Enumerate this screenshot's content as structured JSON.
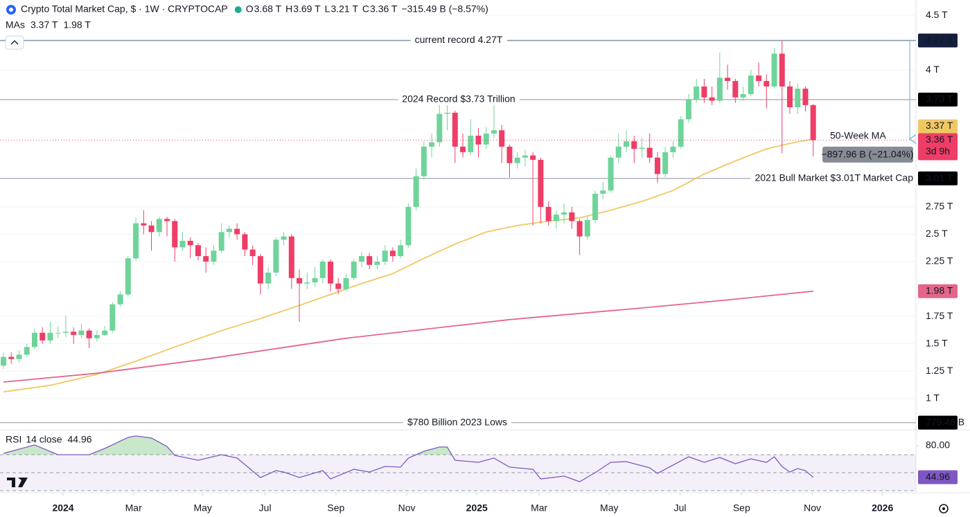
{
  "chart_data": {
    "type": "candlestick",
    "title": "Crypto Total Market Cap, $ · 1W · CRYPTOCAP",
    "ohlc_legend": [
      {
        "key": "O",
        "text": "3.68 T"
      },
      {
        "key": "H",
        "text": "3.69 T"
      },
      {
        "key": "L",
        "text": "3.21 T"
      },
      {
        "key": "C",
        "text": "3.36 T"
      }
    ],
    "change": "−315.49 B (−8.57%)",
    "ma_legend_title": "MAs",
    "up_color": "#6fd49a",
    "down_color": "#ee3d66",
    "open": [
      1.3,
      1.38,
      1.36,
      1.4,
      1.47,
      1.6,
      1.53,
      1.6,
      1.6,
      1.61,
      1.58,
      1.62,
      1.55,
      1.58,
      1.62,
      1.86,
      1.95,
      2.28,
      2.6,
      2.58,
      2.52,
      2.64,
      2.62,
      2.38,
      2.44,
      2.4,
      2.3,
      2.25,
      2.35,
      2.52,
      2.55,
      2.5,
      2.36,
      2.3,
      2.05,
      2.15,
      2.45,
      2.48,
      2.1,
      2.05,
      2.06,
      2.1,
      2.25,
      2.05,
      2.0,
      2.1,
      2.25,
      2.3,
      2.22,
      2.25,
      2.35,
      2.3,
      2.4,
      2.75,
      3.03,
      3.3,
      3.34,
      3.6,
      3.61,
      3.3,
      3.25,
      3.4,
      3.32,
      3.42,
      3.45,
      3.3,
      3.15,
      3.2,
      3.22,
      3.18,
      2.75,
      2.62,
      2.68,
      2.7,
      2.62,
      2.48,
      2.63,
      2.87,
      2.9,
      3.2,
      3.3,
      3.35,
      3.28,
      3.29,
      3.2,
      3.05,
      3.25,
      3.3,
      3.55,
      3.73,
      3.85,
      3.75,
      3.72,
      3.93,
      3.9,
      3.75,
      3.78,
      3.95,
      3.9,
      3.85,
      4.15,
      3.85,
      3.66,
      3.83,
      3.68
    ],
    "high": [
      1.42,
      1.42,
      1.44,
      1.5,
      1.64,
      1.65,
      1.7,
      1.66,
      1.76,
      1.65,
      1.68,
      1.64,
      1.62,
      1.66,
      1.88,
      1.98,
      2.3,
      2.65,
      2.72,
      2.62,
      2.66,
      2.66,
      2.64,
      2.52,
      2.47,
      2.42,
      2.38,
      2.4,
      2.6,
      2.58,
      2.6,
      2.52,
      2.4,
      2.32,
      2.2,
      2.47,
      2.52,
      2.5,
      2.18,
      2.15,
      2.2,
      2.27,
      2.27,
      2.1,
      2.14,
      2.27,
      2.34,
      2.33,
      2.3,
      2.4,
      2.38,
      2.45,
      2.78,
      3.1,
      3.35,
      3.42,
      3.7,
      3.68,
      3.63,
      3.42,
      3.55,
      3.47,
      3.48,
      3.76,
      3.5,
      3.32,
      3.25,
      3.27,
      3.25,
      3.2,
      2.8,
      2.72,
      2.78,
      2.75,
      2.64,
      2.66,
      2.9,
      2.98,
      3.22,
      3.42,
      3.45,
      3.4,
      3.38,
      3.42,
      3.25,
      3.3,
      3.35,
      3.58,
      3.78,
      3.92,
      3.92,
      3.85,
      4.16,
      4.05,
      3.92,
      3.85,
      4.0,
      4.07,
      3.96,
      4.2,
      4.27,
      3.9,
      3.88,
      3.85,
      3.69
    ],
    "low": [
      1.27,
      1.32,
      1.33,
      1.38,
      1.45,
      1.5,
      1.5,
      1.55,
      1.56,
      1.5,
      1.55,
      1.46,
      1.52,
      1.57,
      1.6,
      1.84,
      1.93,
      2.26,
      2.5,
      2.35,
      2.48,
      2.48,
      2.25,
      2.35,
      2.28,
      2.26,
      2.15,
      2.22,
      2.33,
      2.47,
      2.45,
      2.3,
      2.22,
      1.95,
      2.0,
      2.12,
      2.4,
      2.0,
      1.7,
      2.0,
      2.02,
      2.05,
      1.98,
      1.95,
      1.98,
      2.08,
      2.2,
      2.18,
      2.18,
      2.22,
      2.25,
      2.28,
      2.38,
      2.72,
      3.0,
      3.2,
      3.3,
      3.45,
      3.15,
      3.2,
      3.22,
      3.2,
      3.28,
      3.38,
      3.15,
      3.02,
      3.1,
      3.12,
      2.58,
      2.6,
      2.58,
      2.55,
      2.6,
      2.55,
      2.31,
      2.45,
      2.6,
      2.82,
      2.88,
      3.15,
      3.25,
      3.15,
      3.2,
      3.15,
      2.97,
      3.02,
      3.2,
      3.28,
      3.52,
      3.7,
      3.7,
      3.68,
      3.7,
      3.82,
      3.7,
      3.72,
      3.76,
      3.85,
      3.65,
      3.83,
      3.24,
      3.6,
      3.6,
      3.62,
      3.21
    ],
    "close": [
      1.38,
      1.36,
      1.4,
      1.47,
      1.6,
      1.53,
      1.6,
      1.6,
      1.61,
      1.58,
      1.62,
      1.55,
      1.58,
      1.62,
      1.86,
      1.95,
      2.28,
      2.6,
      2.58,
      2.52,
      2.64,
      2.62,
      2.38,
      2.44,
      2.4,
      2.3,
      2.25,
      2.35,
      2.52,
      2.55,
      2.5,
      2.36,
      2.3,
      2.05,
      2.15,
      2.45,
      2.48,
      2.1,
      2.05,
      2.06,
      2.1,
      2.25,
      2.05,
      2.0,
      2.1,
      2.25,
      2.3,
      2.22,
      2.25,
      2.35,
      2.3,
      2.4,
      2.75,
      3.03,
      3.3,
      3.34,
      3.6,
      3.61,
      3.3,
      3.25,
      3.4,
      3.32,
      3.42,
      3.45,
      3.3,
      3.15,
      3.2,
      3.22,
      3.18,
      2.75,
      2.62,
      2.68,
      2.7,
      2.62,
      2.48,
      2.63,
      2.87,
      2.9,
      3.2,
      3.3,
      3.35,
      3.28,
      3.29,
      3.2,
      3.05,
      3.25,
      3.3,
      3.55,
      3.73,
      3.85,
      3.75,
      3.72,
      3.93,
      3.9,
      3.75,
      3.78,
      3.95,
      3.9,
      3.85,
      4.15,
      3.85,
      3.66,
      3.83,
      3.68,
      3.36
    ],
    "last_price_label": "3.36 T",
    "countdown": "3d 9h",
    "ylim": [
      0.72,
      4.64
    ],
    "yticks": [
      {
        "value": 1,
        "label": "1 T"
      },
      {
        "value": 1.25,
        "label": "1.25 T"
      },
      {
        "value": 1.5,
        "label": "1.5 T"
      },
      {
        "value": 1.75,
        "label": "1.75 T"
      },
      {
        "value": 2.25,
        "label": "2.25 T"
      },
      {
        "value": 2.5,
        "label": "2.5 T"
      },
      {
        "value": 2.75,
        "label": "2.75 T"
      },
      {
        "value": 4,
        "label": "4 T"
      },
      {
        "value": 4.5,
        "label": "4.5 T"
      }
    ],
    "xlim": [
      -0.45,
      117.2
    ],
    "xticks": [
      {
        "value": 7.65,
        "label": "2024"
      },
      {
        "value": 16.7,
        "label": "Mar"
      },
      {
        "value": 25.6,
        "label": "May"
      },
      {
        "value": 33.6,
        "label": "Jul"
      },
      {
        "value": 42.7,
        "label": "Sep"
      },
      {
        "value": 51.8,
        "label": "Nov"
      },
      {
        "value": 60.8,
        "label": "2025"
      },
      {
        "value": 68.8,
        "label": "Mar"
      },
      {
        "value": 77.8,
        "label": "May"
      },
      {
        "value": 86.9,
        "label": "Jul"
      },
      {
        "value": 94.8,
        "label": "Sep"
      },
      {
        "value": 103.9,
        "label": "Nov"
      },
      {
        "value": 112.9,
        "label": "2026"
      }
    ],
    "grid": true,
    "series": [
      {
        "name": "50-Week MA",
        "color": "#f0c862",
        "last_label": "3.37 T",
        "x": [
          0,
          6,
          12,
          17,
          22,
          28,
          33,
          38,
          42,
          46,
          50,
          54,
          58,
          62,
          66,
          70,
          74,
          78,
          82,
          86,
          90,
          94,
          98,
          101,
          104
        ],
        "values": [
          1.06,
          1.12,
          1.22,
          1.34,
          1.47,
          1.62,
          1.73,
          1.85,
          1.95,
          2.05,
          2.14,
          2.28,
          2.41,
          2.52,
          2.58,
          2.62,
          2.65,
          2.72,
          2.8,
          2.9,
          3.05,
          3.17,
          3.28,
          3.33,
          3.37
        ]
      },
      {
        "color": "#e3668a",
        "last_label": "1.98 T",
        "x": [
          0,
          12,
          26,
          44,
          65,
          81,
          93,
          104
        ],
        "values": [
          1.15,
          1.23,
          1.36,
          1.55,
          1.72,
          1.82,
          1.9,
          1.98
        ]
      }
    ],
    "levels": [
      {
        "value": 4.27,
        "text": "current record 4.27T",
        "label": "4.27 T",
        "color": "#7f93ad",
        "badge_color": "#131f3d"
      },
      {
        "value": 3.73,
        "text": "2024 Record $3.73 Trillion",
        "label": "3.73 T",
        "color": "#b2b5be",
        "badge_color": "#000000"
      },
      {
        "value": 3.01,
        "text": "2021 Bull Market $3.01T Market Cap",
        "label": "3.01 T",
        "color": "#b2b5be",
        "badge_color": "#000000"
      },
      {
        "value": 0.77946,
        "text": "$780 Billion 2023 Lows",
        "label": "779.46 B",
        "color": "#b2b5be",
        "badge_color": "#000000"
      }
    ],
    "measure": {
      "from": 4.27,
      "to": 3.37,
      "text": "−897.96 B (−21.04%)",
      "color": "#8fbde2"
    },
    "rsi": {
      "title": "RSI",
      "params": "14 close",
      "color": "#7e57c2",
      "ylim": [
        27.7,
        96.9
      ],
      "yticks": [
        {
          "value": 80,
          "label": "80.00"
        }
      ],
      "bands": [
        70,
        50,
        30
      ],
      "x": [
        0,
        1,
        4,
        7,
        11,
        13,
        16,
        17,
        19,
        21,
        22,
        25,
        28,
        30,
        33,
        35,
        36,
        38,
        41,
        42,
        45,
        47,
        49,
        51,
        52,
        54,
        56,
        57,
        58,
        61,
        63,
        65,
        68,
        69,
        72,
        74,
        76,
        78,
        80,
        83,
        84,
        86,
        88,
        90,
        92,
        94,
        96,
        98,
        99,
        100,
        101,
        102,
        103,
        104
      ],
      "values": [
        71.5,
        73.8,
        80.8,
        70.0,
        70.0,
        76.9,
        89.2,
        90.8,
        88.5,
        79.2,
        69.2,
        63.8,
        70.0,
        66.2,
        44.6,
        52.3,
        50.8,
        44.6,
        52.3,
        43.1,
        53.8,
        50.8,
        56.9,
        56.2,
        66.2,
        73.8,
        78.5,
        78.5,
        63.8,
        61.5,
        66.2,
        56.2,
        53.8,
        43.1,
        46.2,
        40.0,
        50.0,
        61.5,
        62.3,
        55.4,
        49.2,
        58.5,
        67.7,
        61.5,
        66.9,
        60.0,
        65.4,
        61.5,
        67.7,
        56.9,
        50.8,
        54.6,
        52.3,
        44.96
      ]
    }
  }
}
